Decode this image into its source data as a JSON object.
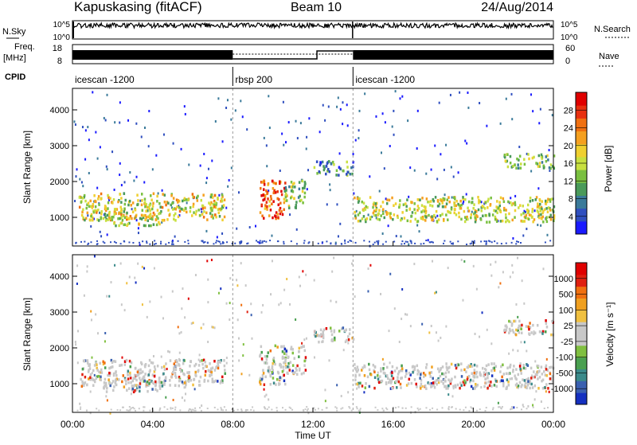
{
  "header": {
    "station": "Kapuskasing (fitACF)",
    "beam": "Beam 10",
    "date": "24/Aug/2014"
  },
  "strips": {
    "nsky_label": "N.Sky",
    "nsky_ticks": [
      "10^5",
      "10^0"
    ],
    "nsearch_label": "N.Search",
    "nsearch_ticks": [
      "10^5",
      "10^0"
    ],
    "freq_label": "Freq.",
    "freq_unit": "[MHz]",
    "freq_ticks": [
      "18",
      "8"
    ],
    "nave_label": "Nave",
    "nave_ticks": [
      "60",
      "0"
    ],
    "cpid_label": "CPID",
    "cpid_segments": [
      {
        "label": "icescan -1200",
        "start_hour": 0,
        "end_hour": 8
      },
      {
        "label": "rbsp 200",
        "start_hour": 8,
        "end_hour": 14
      },
      {
        "label": "icescan -1200",
        "start_hour": 14,
        "end_hour": 24
      }
    ]
  },
  "chart_data": [
    {
      "type": "heatmap",
      "name": "power-panel",
      "ylabel": "Slant Range [km]",
      "ylim": [
        200,
        4600
      ],
      "yticks": [
        "4000",
        "3000",
        "2000",
        "1000"
      ],
      "colorbar_label": "Power [dB]",
      "colorbar_ticks": [
        "28",
        "24",
        "20",
        "16",
        "12",
        "8",
        "4"
      ],
      "colorbar_colors": [
        "#1a1aff",
        "#2f4fbf",
        "#3a7a9a",
        "#4a9a5a",
        "#7ac040",
        "#c8e040",
        "#f0d030",
        "#f5a020",
        "#f07010",
        "#e83010",
        "#e00000"
      ],
      "echo_bands": [
        {
          "start_hour": 0.3,
          "end_hour": 7.6,
          "range_low": 950,
          "range_high": 1700,
          "level": 0.55
        },
        {
          "start_hour": 1.5,
          "end_hour": 4.5,
          "range_low": 800,
          "range_high": 1100,
          "level": 0.5
        },
        {
          "start_hour": 9.3,
          "end_hour": 10.6,
          "range_low": 1000,
          "range_high": 2100,
          "level": 0.85
        },
        {
          "start_hour": 10.5,
          "end_hour": 11.6,
          "range_low": 1300,
          "range_high": 2100,
          "level": 0.45
        },
        {
          "start_hour": 12.0,
          "end_hour": 14.0,
          "range_low": 2200,
          "range_high": 2600,
          "level": 0.25
        },
        {
          "start_hour": 14.0,
          "end_hour": 24.0,
          "range_low": 900,
          "range_high": 1600,
          "level": 0.5
        },
        {
          "start_hour": 21.5,
          "end_hour": 24.0,
          "range_low": 2400,
          "range_high": 2800,
          "level": 0.4
        }
      ]
    },
    {
      "type": "heatmap",
      "name": "velocity-panel",
      "xlabel": "Time UT",
      "ylabel": "Slant Range [km]",
      "xlim": [
        0,
        24
      ],
      "xticks": [
        "00:00",
        "04:00",
        "08:00",
        "12:00",
        "16:00",
        "20:00",
        "00:00"
      ],
      "ylim": [
        200,
        4600
      ],
      "yticks": [
        "4000",
        "3000",
        "2000",
        "1000"
      ],
      "colorbar_label": "Velocity [m s⁻¹]",
      "colorbar_ticks": [
        "1000",
        "500",
        "100",
        "25",
        "-25",
        "-100",
        "-500",
        "-1000"
      ],
      "colorbar_colors": [
        "#1530c0",
        "#3a60b0",
        "#3a8a8a",
        "#4aa050",
        "#80c040",
        "#c8c8c8",
        "#c8c8c8",
        "#f0c040",
        "#f0a020",
        "#f07010",
        "#e02010",
        "#e00000"
      ],
      "echo_bands": [
        {
          "start_hour": 0.3,
          "end_hour": 7.6,
          "range_low": 950,
          "range_high": 1700,
          "level": 0.5
        },
        {
          "start_hour": 1.5,
          "end_hour": 4.5,
          "range_low": 800,
          "range_high": 1100,
          "level": 0.6
        },
        {
          "start_hour": 9.3,
          "end_hour": 10.6,
          "range_low": 1000,
          "range_high": 2100,
          "level": 0.5
        },
        {
          "start_hour": 10.5,
          "end_hour": 11.6,
          "range_low": 1300,
          "range_high": 2100,
          "level": 0.5
        },
        {
          "start_hour": 12.0,
          "end_hour": 14.0,
          "range_low": 2200,
          "range_high": 2600,
          "level": 0.5
        },
        {
          "start_hour": 14.0,
          "end_hour": 24.0,
          "range_low": 900,
          "range_high": 1600,
          "level": 0.5
        },
        {
          "start_hour": 21.5,
          "end_hour": 24.0,
          "range_low": 2400,
          "range_high": 2800,
          "level": 0.55
        }
      ]
    }
  ]
}
